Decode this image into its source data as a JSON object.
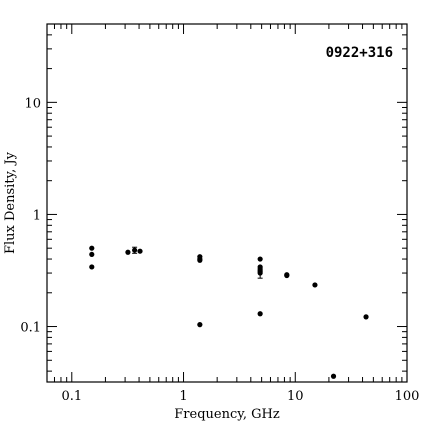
{
  "chart_data": {
    "type": "scatter",
    "title": "0922+316",
    "xlabel": "Frequency, GHz",
    "ylabel": "Flux Density, Jy",
    "xscale": "log",
    "yscale": "log",
    "xlim": [
      0.06,
      100
    ],
    "ylim": [
      0.032,
      50
    ],
    "grid": false,
    "x_tick_labels": [
      {
        "value": 0.1,
        "label": "0.1"
      },
      {
        "value": 1,
        "label": "1"
      },
      {
        "value": 10,
        "label": "10"
      },
      {
        "value": 100,
        "label": "100"
      }
    ],
    "y_tick_labels": [
      {
        "value": 0.1,
        "label": "0.1"
      },
      {
        "value": 1,
        "label": "1"
      },
      {
        "value": 10,
        "label": "10"
      }
    ],
    "points": [
      {
        "x": 0.151,
        "y": 0.5
      },
      {
        "x": 0.151,
        "y": 0.44
      },
      {
        "x": 0.151,
        "y": 0.34
      },
      {
        "x": 0.318,
        "y": 0.46
      },
      {
        "x": 0.365,
        "y": 0.48,
        "yerr": 0.03
      },
      {
        "x": 0.408,
        "y": 0.47
      },
      {
        "x": 1.4,
        "y": 0.42
      },
      {
        "x": 1.4,
        "y": 0.4
      },
      {
        "x": 1.4,
        "y": 0.39
      },
      {
        "x": 1.4,
        "y": 0.104
      },
      {
        "x": 4.85,
        "y": 0.4
      },
      {
        "x": 4.85,
        "y": 0.34
      },
      {
        "x": 4.85,
        "y": 0.32
      },
      {
        "x": 4.85,
        "y": 0.31
      },
      {
        "x": 4.85,
        "y": 0.3,
        "yerr": 0.03
      },
      {
        "x": 4.85,
        "y": 0.13
      },
      {
        "x": 8.4,
        "y": 0.29
      },
      {
        "x": 8.4,
        "y": 0.285
      },
      {
        "x": 15,
        "y": 0.235
      },
      {
        "x": 22,
        "y": 0.036
      },
      {
        "x": 43,
        "y": 0.122
      }
    ]
  }
}
